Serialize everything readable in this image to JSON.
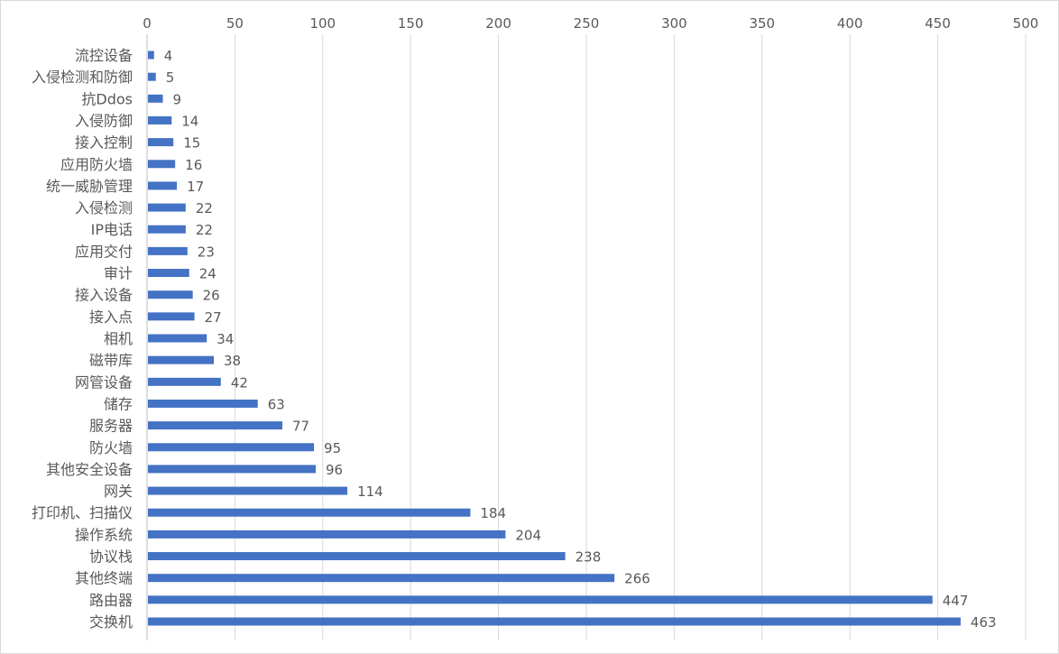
{
  "chart_data": {
    "type": "bar",
    "orientation": "horizontal",
    "title": "",
    "xlabel": "",
    "ylabel": "",
    "xlim": [
      0,
      500
    ],
    "x_ticks": [
      0,
      50,
      100,
      150,
      200,
      250,
      300,
      350,
      400,
      450,
      500
    ],
    "x_axis_position": "top",
    "grid": true,
    "bar_color": "#4472C4",
    "data_labels": true,
    "categories": [
      "流控设备",
      "入侵检测和防御",
      "抗Ddos",
      "入侵防御",
      "接入控制",
      "应用防火墙",
      "统一威胁管理",
      "入侵检测",
      "IP电话",
      "应用交付",
      "审计",
      "接入设备",
      "接入点",
      "相机",
      "磁带库",
      "网管设备",
      "储存",
      "服务器",
      "防火墙",
      "其他安全设备",
      "网关",
      "打印机、扫描仪",
      "操作系统",
      "协议栈",
      "其他终端",
      "路由器",
      "交换机"
    ],
    "values": [
      4,
      5,
      9,
      14,
      15,
      16,
      17,
      22,
      22,
      23,
      24,
      26,
      27,
      34,
      38,
      42,
      63,
      77,
      95,
      96,
      114,
      184,
      204,
      238,
      266,
      447,
      463
    ]
  }
}
